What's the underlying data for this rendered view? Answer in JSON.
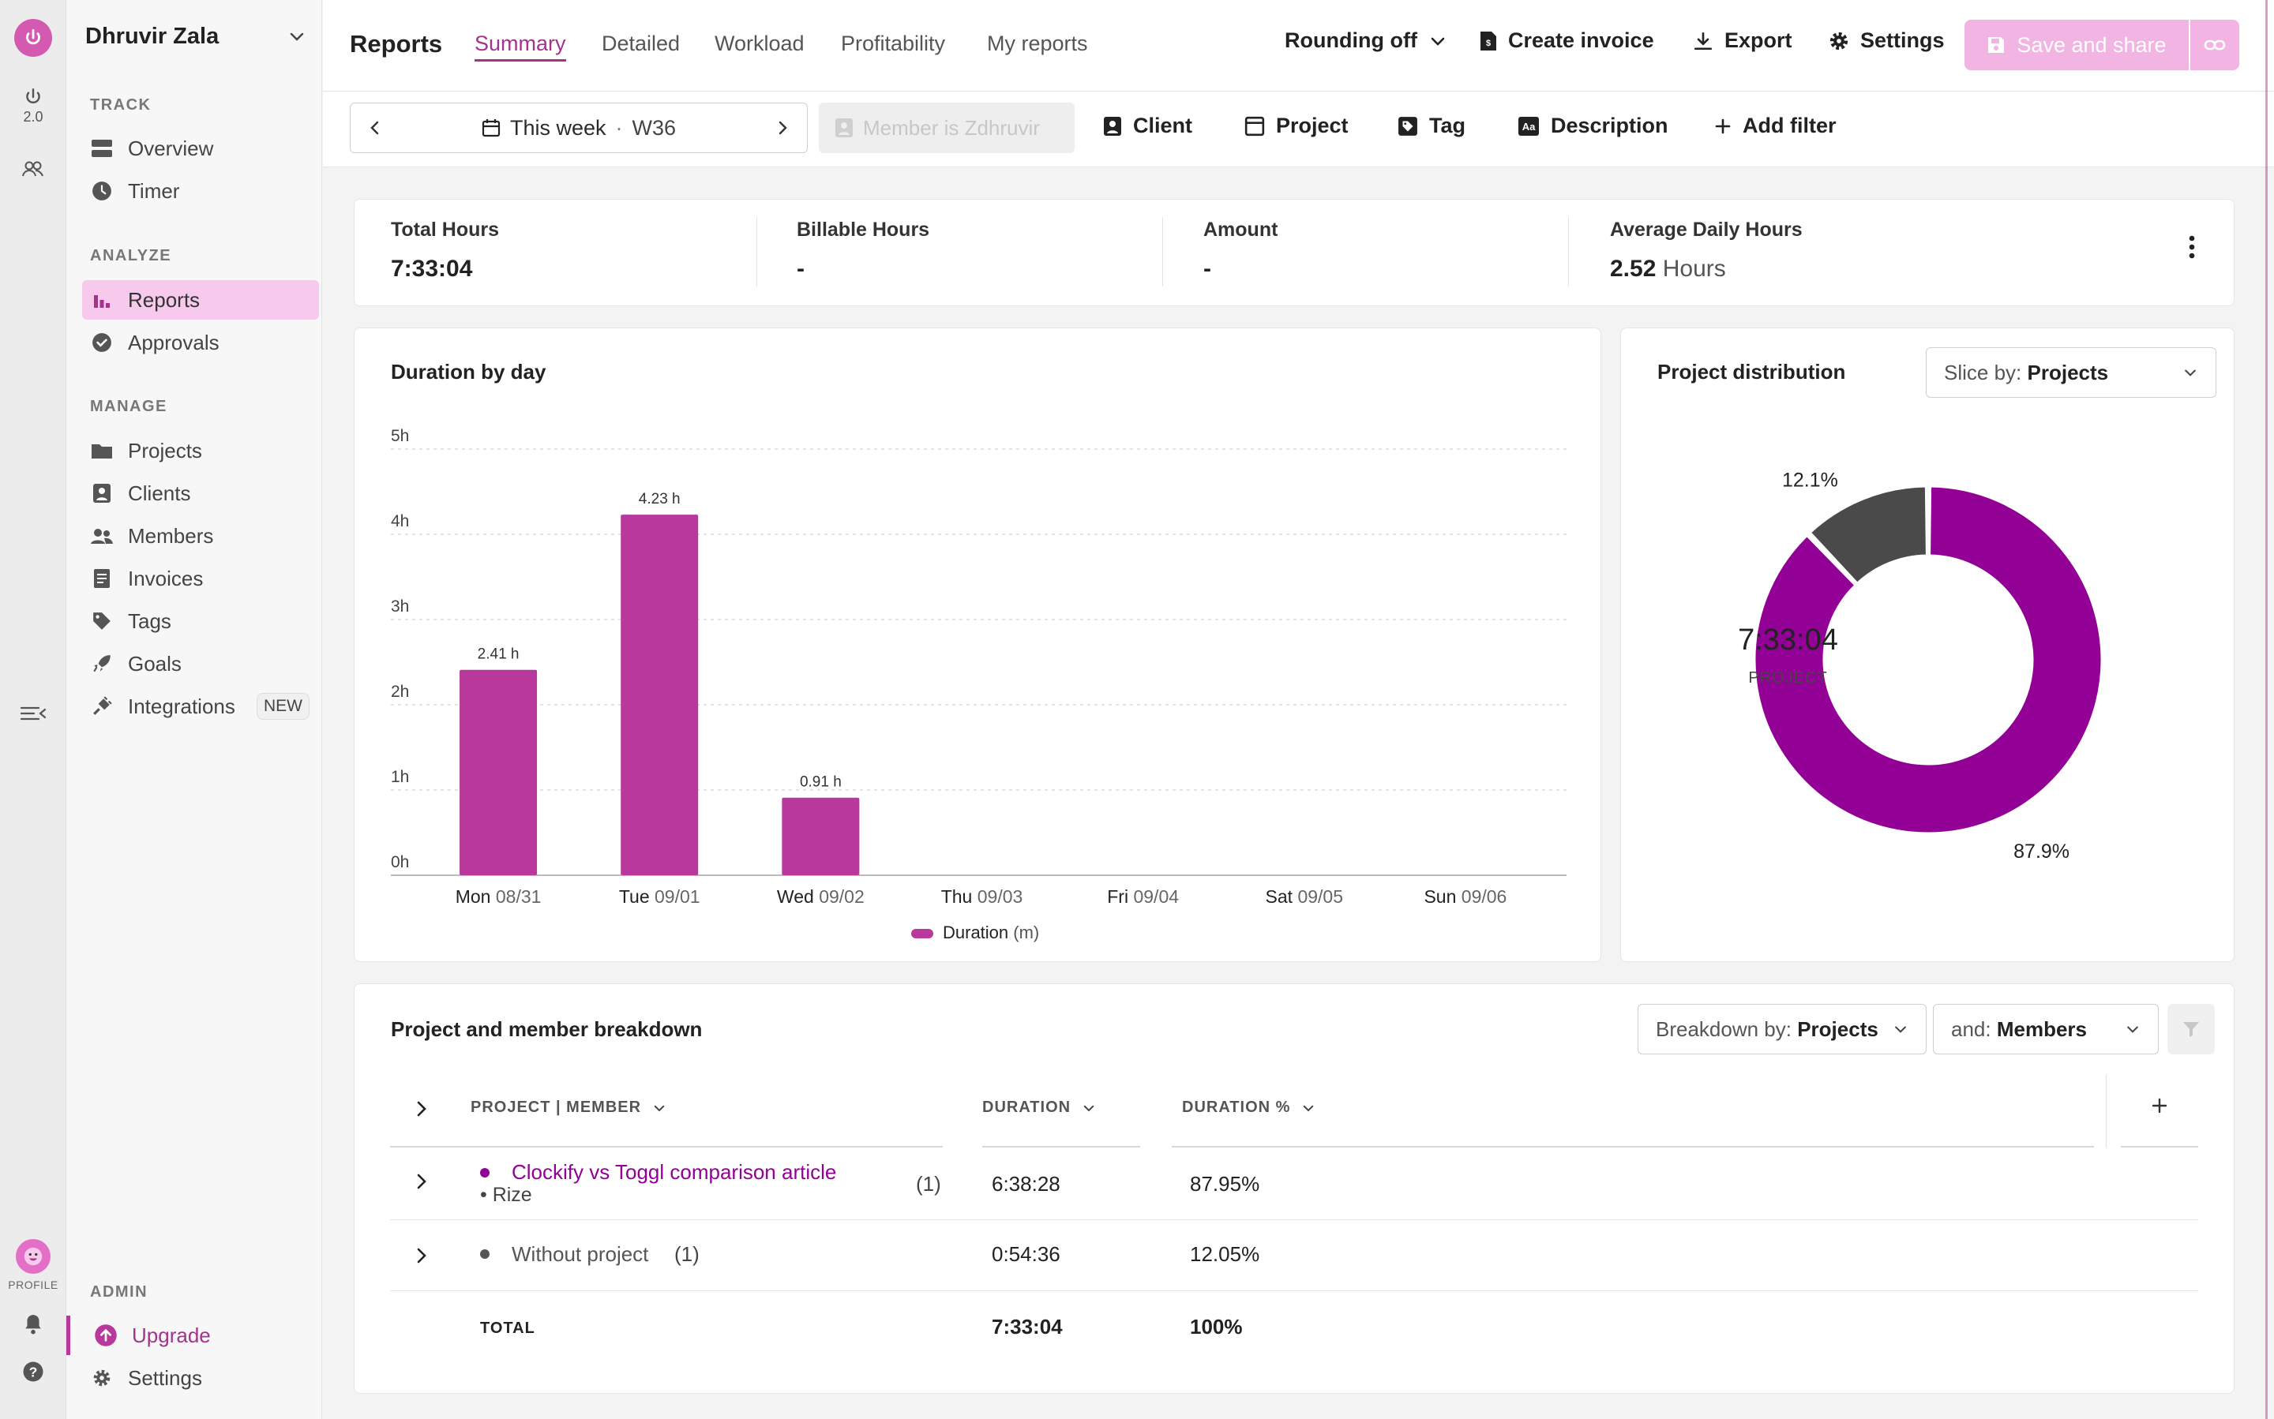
{
  "rail": {
    "version": "2.0",
    "profile_label": "PROFILE"
  },
  "sidebar": {
    "workspace": "Dhruvir Zala",
    "track_label": "TRACK",
    "track_items": [
      {
        "label": "Overview"
      },
      {
        "label": "Timer"
      }
    ],
    "analyze_label": "ANALYZE",
    "analyze_items": [
      {
        "label": "Reports"
      },
      {
        "label": "Approvals"
      }
    ],
    "manage_label": "MANAGE",
    "manage_items": [
      {
        "label": "Projects"
      },
      {
        "label": "Clients"
      },
      {
        "label": "Members"
      },
      {
        "label": "Invoices"
      },
      {
        "label": "Tags"
      },
      {
        "label": "Goals"
      },
      {
        "label": "Integrations"
      }
    ],
    "new_badge": "NEW",
    "admin_label": "ADMIN",
    "admin_items": [
      {
        "label": "Upgrade"
      },
      {
        "label": "Settings"
      }
    ]
  },
  "header": {
    "title": "Reports",
    "tabs": [
      {
        "label": "Summary"
      },
      {
        "label": "Detailed"
      },
      {
        "label": "Workload"
      },
      {
        "label": "Profitability"
      },
      {
        "label": "My reports"
      }
    ],
    "rounding": "Rounding off",
    "create_invoice": "Create invoice",
    "export": "Export",
    "settings": "Settings",
    "save_share": "Save and share"
  },
  "filters": {
    "date_range": "This week",
    "week": "W36",
    "member": "Member is Zdhruvir",
    "client": "Client",
    "project": "Project",
    "tag": "Tag",
    "description": "Description",
    "add_filter": "Add filter"
  },
  "stats": [
    {
      "label": "Total Hours",
      "value": "7:33:04",
      "unit": ""
    },
    {
      "label": "Billable Hours",
      "value": "-",
      "unit": ""
    },
    {
      "label": "Amount",
      "value": "-",
      "unit": ""
    },
    {
      "label": "Average Daily Hours",
      "value": "2.52",
      "unit": "Hours"
    }
  ],
  "duration_chart": {
    "title": "Duration by day"
  },
  "distribution": {
    "title": "Project distribution",
    "slice_prefix": "Slice by:",
    "slice_value": "Projects",
    "center_value": "7:33:04",
    "center_label": "PROJECT"
  },
  "chart_data": [
    {
      "type": "bar",
      "title": "Duration by day",
      "categories": [
        "Mon 08/31",
        "Tue 09/01",
        "Wed 09/02",
        "Thu 09/03",
        "Fri 09/04",
        "Sat 09/05",
        "Sun 09/06"
      ],
      "day_names": [
        "Mon",
        "Tue",
        "Wed",
        "Thu",
        "Fri",
        "Sat",
        "Sun"
      ],
      "day_dates": [
        "08/31",
        "09/01",
        "09/02",
        "09/03",
        "09/04",
        "09/05",
        "09/06"
      ],
      "values": [
        2.41,
        4.23,
        0.91,
        0,
        0,
        0,
        0
      ],
      "data_labels": [
        "2.41 h",
        "4.23 h",
        "0.91 h",
        "",
        "",
        "",
        ""
      ],
      "yticks": [
        "0h",
        "1h",
        "2h",
        "3h",
        "4h",
        "5h"
      ],
      "ylim": [
        0,
        5
      ],
      "legend": "Duration",
      "legend_unit": "(m)",
      "legend_position": "bottom",
      "grid": true,
      "color": "#b8389c"
    },
    {
      "type": "pie",
      "title": "Project distribution",
      "slices": [
        {
          "label": "87.9%",
          "value": 87.9,
          "color": "#930096"
        },
        {
          "label": "12.1%",
          "value": 12.1,
          "color": "#4a4a4a"
        }
      ]
    }
  ],
  "breakdown": {
    "title": "Project and member breakdown",
    "breakdown_prefix": "Breakdown by:",
    "breakdown_value": "Projects",
    "and_prefix": "and:",
    "and_value": "Members",
    "columns": [
      "PROJECT | MEMBER",
      "DURATION",
      "DURATION %"
    ],
    "rows": [
      {
        "project": "Clockify vs Toggl comparison article",
        "member": "• Rize",
        "count": "(1)",
        "duration": "6:38:28",
        "percent": "87.95%",
        "color": "#930096"
      },
      {
        "project": "Without project",
        "member": "",
        "count": "(1)",
        "duration": "0:54:36",
        "percent": "12.05%",
        "color": "#555555"
      }
    ],
    "total_label": "TOTAL",
    "total_duration": "7:33:04",
    "total_percent": "100%"
  },
  "colors": {
    "accent": "#a4338b",
    "bar": "#b8389c",
    "pie_main": "#930096",
    "pie_other": "#4a4a4a",
    "active_bg": "#f7c9ec"
  }
}
